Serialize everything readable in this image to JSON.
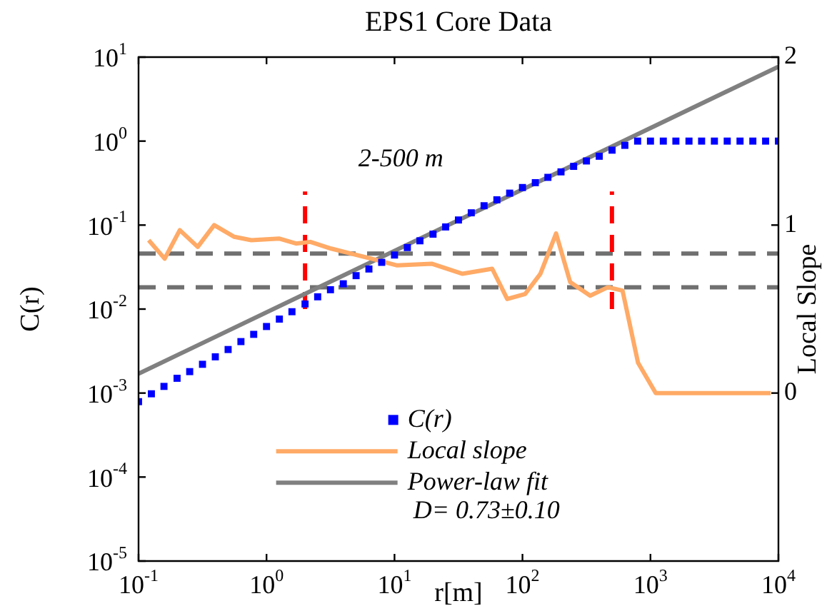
{
  "chart_data": {
    "type": "scatter",
    "title": "EPS1 Core Data",
    "xlabel": "r[m]",
    "ylabel": "C(r)",
    "y2label": "Local Slope",
    "log": "xy",
    "legend": "bottom",
    "annotations": [
      "2-500 m"
    ],
    "xlim": [
      0.1,
      10000
    ],
    "xticks": [
      {
        "value": 0.1,
        "label": "10$^{-1}$"
      },
      {
        "value": 1,
        "label": "10$^{0}$"
      },
      {
        "value": 10,
        "label": "10$^{1}$"
      },
      {
        "value": 100,
        "label": "10$^{2}$"
      },
      {
        "value": 1000,
        "label": "10$^{3}$"
      },
      {
        "value": 10000,
        "label": "10$^{4}$"
      }
    ],
    "ylim": [
      1e-05,
      10
    ],
    "yticks": [
      {
        "value": 1e-05,
        "label": "10$^{-5}$"
      },
      {
        "value": 0.0001,
        "label": "10$^{-4}$"
      },
      {
        "value": 0.001,
        "label": "10$^{-3}$"
      },
      {
        "value": 0.01,
        "label": "10$^{-2}$"
      },
      {
        "value": 0.1,
        "label": "10$^{-1}$"
      },
      {
        "value": 1,
        "label": "10$^{0}$"
      },
      {
        "value": 10,
        "label": "10$^{1}$"
      }
    ],
    "y2lim": [
      -1,
      2
    ],
    "y2ticks": [
      0,
      1,
      2
    ],
    "ref_lines": [
      {
        "axis": "y2",
        "value": 0.83,
        "color": "#707070",
        "line_style": "dashed"
      },
      {
        "axis": "y2",
        "value": 0.63,
        "color": "#707070",
        "line_style": "dashed"
      }
    ],
    "series": [
      {
        "name": "C(r)",
        "type": "scatter",
        "marker": "square",
        "color": "#0000ff",
        "x": [
          0.1,
          0.126,
          0.158,
          0.2,
          0.251,
          0.316,
          0.398,
          0.501,
          0.631,
          0.794,
          1,
          1.26,
          1.58,
          2,
          2.51,
          3.16,
          3.98,
          5.01,
          6.31,
          7.94,
          10,
          12.6,
          15.8,
          20,
          25.1,
          31.6,
          39.8,
          50.1,
          63.1,
          79.4,
          100,
          126,
          158,
          200,
          251,
          316,
          398,
          501,
          631,
          794,
          1000,
          1260,
          1580,
          2000,
          2510,
          3160,
          3980,
          5010,
          6310,
          7940,
          10000
        ],
        "values": [
          0.00079,
          0.00098,
          0.0012,
          0.0015,
          0.0018,
          0.0022,
          0.0027,
          0.0033,
          0.0041,
          0.005,
          0.0062,
          0.0076,
          0.0093,
          0.0115,
          0.014,
          0.017,
          0.02,
          0.025,
          0.03,
          0.036,
          0.044,
          0.054,
          0.065,
          0.078,
          0.095,
          0.115,
          0.14,
          0.17,
          0.2,
          0.24,
          0.28,
          0.32,
          0.37,
          0.43,
          0.5,
          0.58,
          0.66,
          0.78,
          0.89,
          1,
          1,
          1,
          1,
          1,
          1,
          1,
          1,
          1,
          1,
          1,
          1
        ]
      },
      {
        "name": "Local slope",
        "type": "line",
        "axis": "y2",
        "color": "#ffaa66",
        "x": [
          0.12,
          0.16,
          0.21,
          0.29,
          0.39,
          0.56,
          0.76,
          1.25,
          1.7,
          2.2,
          3.2,
          4.6,
          6.6,
          10.5,
          19.5,
          34,
          58,
          76,
          105,
          138,
          183,
          236,
          338,
          465,
          605,
          800,
          1100,
          8700
        ],
        "values": [
          0.91,
          0.8,
          0.97,
          0.87,
          1.0,
          0.93,
          0.91,
          0.92,
          0.89,
          0.9,
          0.86,
          0.83,
          0.8,
          0.76,
          0.77,
          0.71,
          0.74,
          0.56,
          0.59,
          0.71,
          0.95,
          0.66,
          0.58,
          0.63,
          0.61,
          0.18,
          0,
          0
        ]
      },
      {
        "name": "Power-law fit\nD= 0.73±0.10",
        "type": "line",
        "color": "#808080",
        "x": [
          0.1,
          10000
        ],
        "values": [
          0.0017,
          7.7
        ]
      },
      {
        "type": "line",
        "axis": "y2",
        "line_style": "dashed",
        "color": "#ff0000",
        "x": [
          2,
          2
        ],
        "values": [
          0.5,
          1.2
        ]
      },
      {
        "type": "line",
        "axis": "y2",
        "line_style": "dashed",
        "color": "#ff0000",
        "x": [
          500,
          500
        ],
        "values": [
          0.5,
          1.2
        ]
      }
    ]
  }
}
